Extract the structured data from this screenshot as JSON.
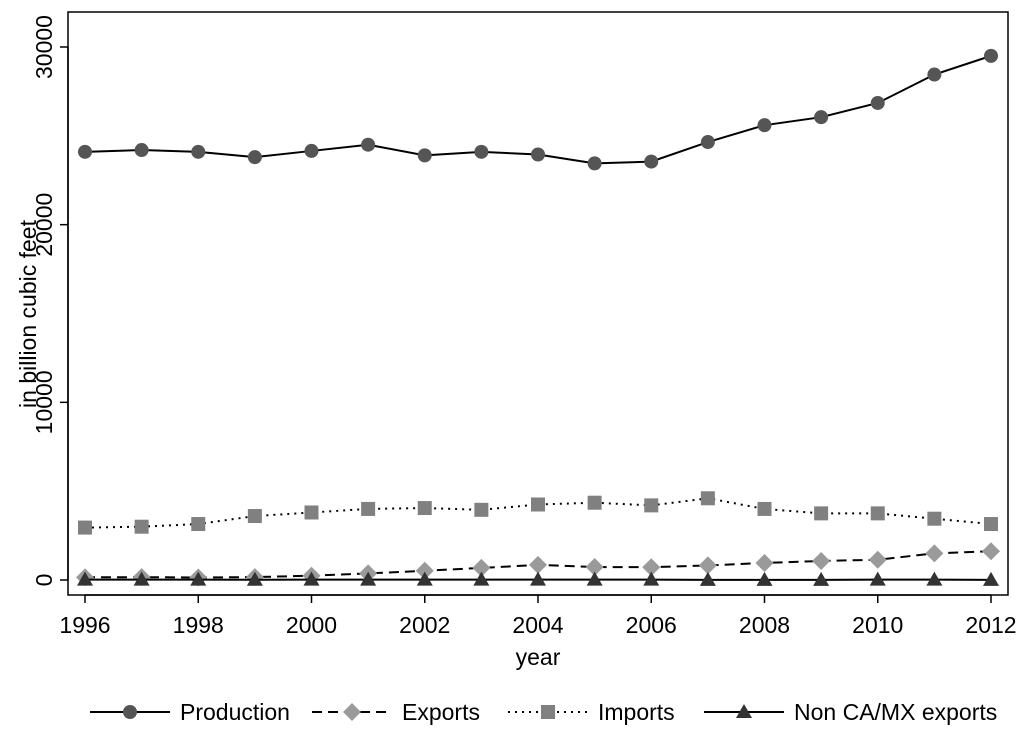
{
  "chart_data": {
    "type": "line",
    "title": "",
    "xlabel": "year",
    "ylabel": "in billion cubic feet",
    "xlim": [
      1996,
      2012
    ],
    "ylim": [
      0,
      30000
    ],
    "xticks": [
      "1996",
      "1998",
      "2000",
      "2002",
      "2004",
      "2006",
      "2008",
      "2010",
      "2012"
    ],
    "yticks": [
      "0",
      "10000",
      "20000",
      "30000"
    ],
    "grid": false,
    "legend_position": "bottom",
    "x": [
      1996,
      1997,
      1998,
      1999,
      2000,
      2001,
      2002,
      2003,
      2004,
      2005,
      2006,
      2007,
      2008,
      2009,
      2010,
      2011,
      2012
    ],
    "series": [
      {
        "name": "Production",
        "marker": "circle",
        "dash": "solid",
        "color": "#555555",
        "values": [
          24100,
          24200,
          24100,
          23800,
          24150,
          24500,
          23900,
          24100,
          23950,
          23450,
          23550,
          24650,
          25600,
          26050,
          26850,
          28450,
          29500
        ]
      },
      {
        "name": "Exports",
        "marker": "diamond",
        "dash": "dashed",
        "color": "#9a9a9a",
        "values": [
          150,
          160,
          140,
          165,
          240,
          370,
          520,
          680,
          850,
          730,
          720,
          820,
          960,
          1070,
          1140,
          1500,
          1620
        ]
      },
      {
        "name": "Imports",
        "marker": "square",
        "dash": "dotted",
        "color": "#808080",
        "values": [
          2950,
          3000,
          3150,
          3600,
          3800,
          4000,
          4050,
          3950,
          4250,
          4350,
          4200,
          4600,
          4000,
          3750,
          3750,
          3450,
          3150
        ]
      },
      {
        "name": "Non CA/MX exports",
        "marker": "triangle",
        "dash": "solid",
        "color": "#333333",
        "values": [
          20,
          20,
          20,
          15,
          20,
          20,
          20,
          20,
          20,
          20,
          20,
          10,
          10,
          5,
          20,
          20,
          10
        ]
      }
    ]
  }
}
